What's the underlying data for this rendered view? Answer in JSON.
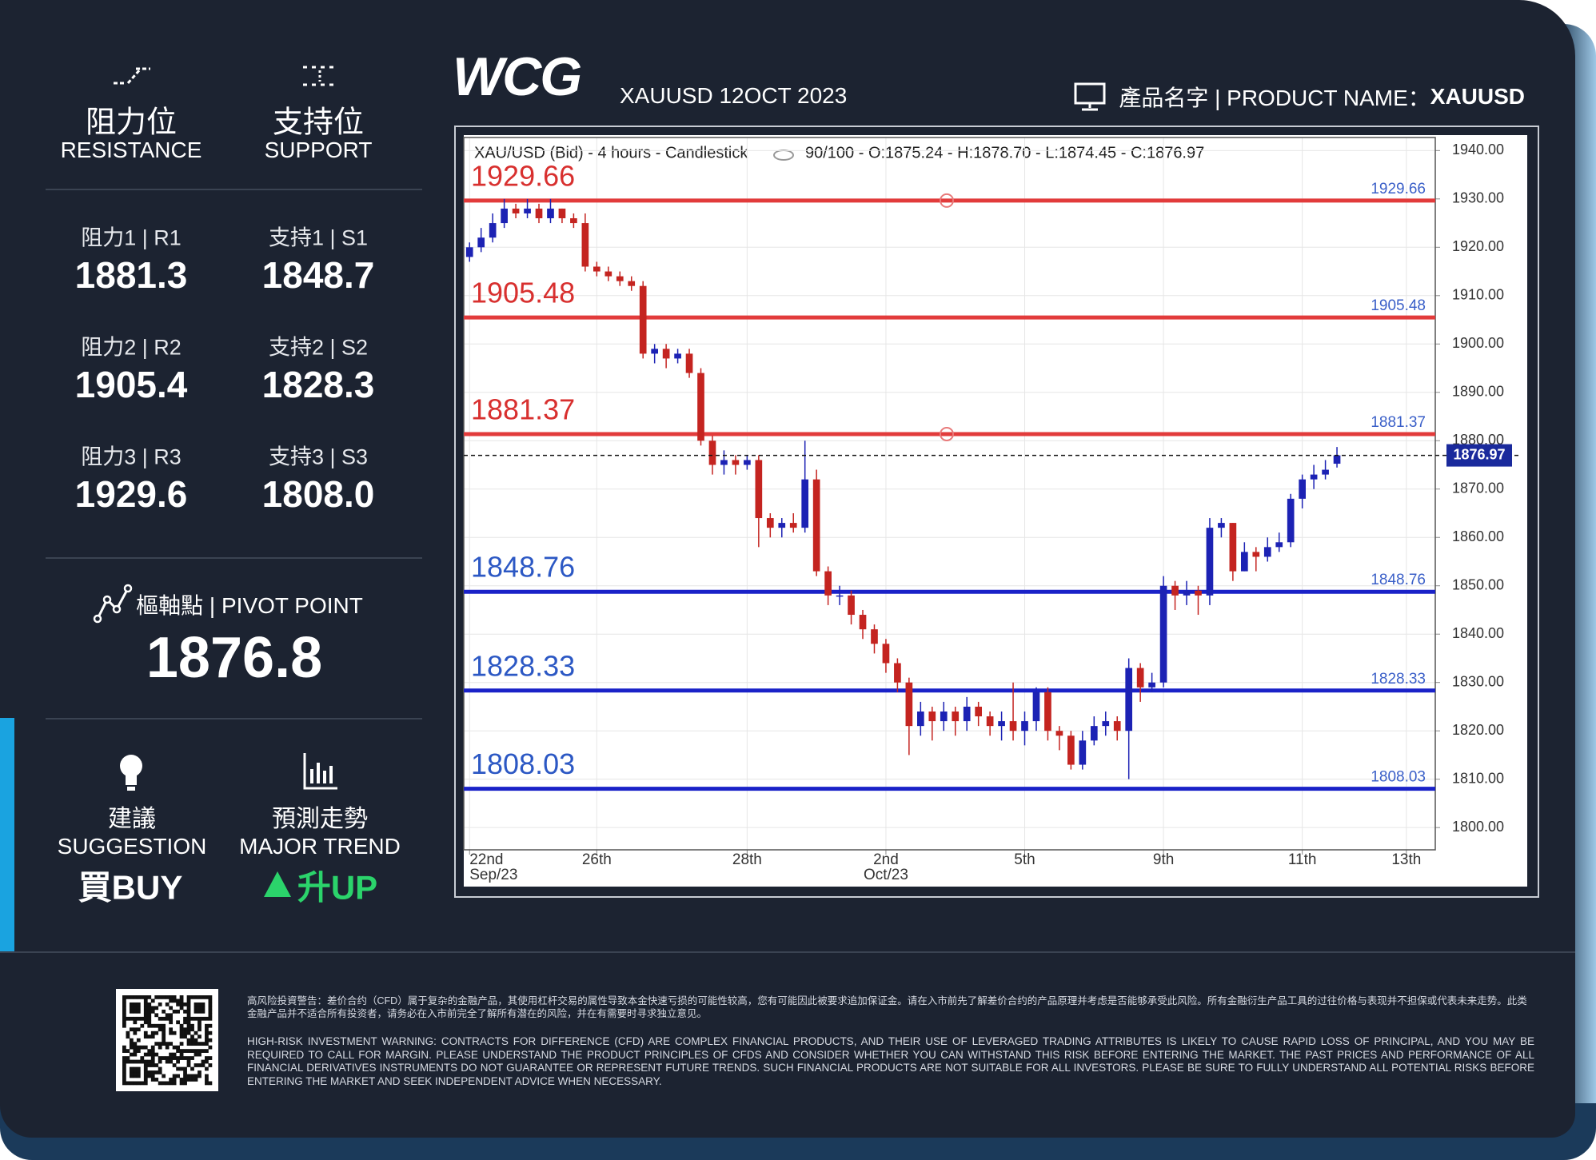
{
  "sidebar": {
    "resistance_title": "阻力位",
    "resistance_en": "RESISTANCE",
    "support_title": "支持位",
    "support_en": "SUPPORT",
    "levels": [
      {
        "r_label": "阻力1 | R1",
        "r_value": "1881.3",
        "s_label": "支持1 | S1",
        "s_value": "1848.7"
      },
      {
        "r_label": "阻力2 | R2",
        "r_value": "1905.4",
        "s_label": "支持2 | S2",
        "s_value": "1828.3"
      },
      {
        "r_label": "阻力3 | R3",
        "r_value": "1929.6",
        "s_label": "支持3 | S3",
        "s_value": "1808.0"
      }
    ],
    "pivot_label": "樞軸點 | PIVOT POINT",
    "pivot_value": "1876.8",
    "suggestion_title": "建議",
    "suggestion_en": "SUGGESTION",
    "suggestion_value": "買BUY",
    "trend_title": "預測走勢",
    "trend_en": "MAJOR TREND",
    "trend_value": "升UP"
  },
  "header": {
    "logo": "WCG",
    "subtitle": "XAUUSD 12OCT 2023",
    "product_label": "產品名字 | PRODUCT NAME：",
    "product_value": "XAUUSD"
  },
  "chart_data": {
    "type": "candlestick",
    "title": "XAU/USD (Bid) - 4 hours - Candlestick",
    "info": "90/100 - O:1875.24 - H:1878.70 - L:1874.45 - C:1876.97",
    "up_color": "#1c22b4",
    "down_color": "#c42420",
    "grid": true,
    "categories": [
      "22nd",
      null,
      null,
      null,
      null,
      null,
      null,
      null,
      null,
      null,
      null,
      "26th",
      null,
      null,
      null,
      null,
      null,
      null,
      null,
      null,
      null,
      null,
      null,
      null,
      "28th",
      null,
      null,
      null,
      null,
      null,
      null,
      null,
      null,
      null,
      null,
      null,
      "2nd",
      null,
      null,
      null,
      null,
      null,
      null,
      null,
      null,
      null,
      null,
      null,
      "5th",
      null,
      null,
      null,
      null,
      null,
      null,
      null,
      null,
      null,
      null,
      null,
      "9th",
      null,
      null,
      null,
      null,
      null,
      null,
      null,
      null,
      null,
      null,
      null,
      "11th",
      null,
      null,
      null,
      null,
      null,
      null,
      null,
      null,
      "13th",
      null,
      null
    ],
    "x_sublabels": [
      "Sep/23",
      null,
      null,
      null,
      null,
      null,
      null,
      null,
      null,
      null,
      null,
      null,
      null,
      null,
      null,
      null,
      null,
      null,
      null,
      null,
      null,
      null,
      null,
      null,
      null,
      null,
      null,
      null,
      null,
      null,
      null,
      null,
      null,
      null,
      null,
      null,
      "Oct/23",
      null,
      null,
      null,
      null,
      null,
      null,
      null,
      null,
      null,
      null,
      null,
      null,
      null,
      null,
      null,
      null,
      null,
      null,
      null,
      null,
      null,
      null,
      null,
      null,
      null,
      null,
      null,
      null,
      null,
      null,
      null,
      null,
      null,
      null,
      null,
      null,
      null,
      null,
      null,
      null,
      null,
      null,
      null,
      null,
      null,
      null,
      null
    ],
    "open": [
      1918,
      1920,
      1922,
      1925,
      1928,
      1927,
      1928,
      1926,
      1928,
      1926,
      1925,
      1916,
      1915,
      1914,
      1913,
      1912,
      1898,
      1899,
      1897,
      1898,
      1894,
      1880,
      1875,
      1876,
      1875,
      1876,
      1864,
      1862,
      1863,
      1862,
      1872,
      1853,
      1848,
      1848,
      1844,
      1841,
      1838,
      1834,
      1830,
      1821,
      1824,
      1822,
      1824,
      1822,
      1825,
      1823,
      1821,
      1822,
      1820,
      1822,
      1828,
      1820,
      1819,
      1813,
      1818,
      1821,
      1822,
      1820,
      1833,
      1829,
      1830,
      1850,
      1848,
      1849,
      1848,
      1862,
      1863,
      1853,
      1857,
      1856,
      1858,
      1859,
      1868,
      1872,
      1873,
      1875.24,
      null,
      null,
      null,
      null,
      null,
      null,
      null,
      null
    ],
    "high": [
      1921,
      1924,
      1927,
      1930,
      1929,
      1930,
      1929,
      1930,
      1928,
      1927,
      1927,
      1917,
      1916,
      1915,
      1914,
      1913,
      1900,
      1900,
      1899,
      1899,
      1895,
      1881,
      1878,
      1877,
      1877,
      1877,
      1865,
      1864,
      1865,
      1880,
      1874,
      1854,
      1850,
      1849,
      1845,
      1842,
      1839,
      1835,
      1831,
      1826,
      1825,
      1826,
      1825,
      1827,
      1826,
      1824,
      1824,
      1830,
      1824,
      1829,
      1829,
      1821,
      1820,
      1820,
      1823,
      1824,
      1823,
      1835,
      1834,
      1832,
      1852,
      1851,
      1851,
      1850,
      1864,
      1864,
      1863,
      1859,
      1858,
      1860,
      1861,
      1869,
      1873,
      1875,
      1876,
      1878.7,
      null,
      null,
      null,
      null,
      null,
      null,
      null,
      null
    ],
    "low": [
      1917,
      1919,
      1921,
      1924,
      1926,
      1926,
      1925,
      1925,
      1925,
      1924,
      1915,
      1914,
      1913,
      1912,
      1911,
      1897,
      1896,
      1895,
      1896,
      1893,
      1879,
      1873,
      1873,
      1873,
      1874,
      1858,
      1860,
      1860,
      1861,
      1861,
      1852,
      1846,
      1846,
      1842,
      1839,
      1836,
      1832,
      1828,
      1815,
      1819,
      1818,
      1820,
      1819,
      1820,
      1821,
      1819,
      1818,
      1818,
      1817,
      1820,
      1818,
      1816,
      1812,
      1812,
      1817,
      1819,
      1818,
      1810,
      1826,
      1828,
      1829,
      1845,
      1846,
      1844,
      1846,
      1860,
      1851,
      1853,
      1853,
      1855,
      1857,
      1858,
      1866,
      1870,
      1872,
      1874.45,
      null,
      null,
      null,
      null,
      null,
      null,
      null,
      null
    ],
    "close": [
      1920,
      1922,
      1925,
      1928,
      1927,
      1928,
      1926,
      1928,
      1926,
      1925,
      1916,
      1915,
      1914,
      1913,
      1912,
      1898,
      1899,
      1897,
      1898,
      1894,
      1880,
      1875,
      1876,
      1875,
      1876,
      1864,
      1862,
      1863,
      1862,
      1872,
      1853,
      1848,
      1848,
      1844,
      1841,
      1838,
      1834,
      1830,
      1821,
      1824,
      1822,
      1824,
      1822,
      1825,
      1823,
      1821,
      1822,
      1820,
      1822,
      1828,
      1820,
      1819,
      1813,
      1818,
      1821,
      1822,
      1820,
      1833,
      1829,
      1830,
      1850,
      1848,
      1849,
      1848,
      1862,
      1863,
      1853,
      1857,
      1856,
      1858,
      1859,
      1868,
      1872,
      1873,
      1874,
      1876.97,
      null,
      null,
      null,
      null,
      null,
      null,
      null,
      null
    ],
    "levels": [
      {
        "value": 1929.66,
        "color": "#e23b3b",
        "label_color": "#d8302f"
      },
      {
        "value": 1905.48,
        "color": "#e23b3b",
        "label_color": "#d8302f"
      },
      {
        "value": 1881.37,
        "color": "#e23b3b",
        "label_color": "#d8302f"
      },
      {
        "value": 1848.76,
        "color": "#1a22c8",
        "label_color": "#2c58c4"
      },
      {
        "value": 1828.33,
        "color": "#1a22c8",
        "label_color": "#2c58c4"
      },
      {
        "value": 1808.03,
        "color": "#1a22c8",
        "label_color": "#2c58c4"
      }
    ],
    "ylim": [
      1795.4,
      1942.7
    ],
    "yticks": [
      {
        "value": 1800,
        "label": "1800.00"
      },
      {
        "value": 1810,
        "label": "1810.00"
      },
      {
        "value": 1820,
        "label": "1820.00"
      },
      {
        "value": 1830,
        "label": "1830.00"
      },
      {
        "value": 1840,
        "label": "1840.00"
      },
      {
        "value": 1850,
        "label": "1850.00"
      },
      {
        "value": 1860,
        "label": "1860.00"
      },
      {
        "value": 1870,
        "label": "1870.00"
      },
      {
        "value": 1880,
        "label": "1880.00"
      },
      {
        "value": 1890,
        "label": "1890.00"
      },
      {
        "value": 1900,
        "label": "1900.00"
      },
      {
        "value": 1910,
        "label": "1910.00"
      },
      {
        "value": 1920,
        "label": "1920.00"
      },
      {
        "value": 1930,
        "label": "1930.00"
      },
      {
        "value": 1940,
        "label": "1940.00"
      }
    ]
  },
  "footer": {
    "disclaimer_cn": "高风险投資警告：差价合约（CFD）属于复杂的金融产品，其使用杠杆交易的属性导致本金快速亏损的可能性较高，您有可能因此被要求追加保证金。请在入市前先了解差价合约的产品原理并考虑是否能够承受此风险。所有金融衍生产品工具的过往价格与表现并不担保或代表未来走势。此类金融产品并不适合所有投资者，请务必在入市前完全了解所有潜在的风险，并在有需要时寻求独立意见。",
    "disclaimer_en": "HIGH-RISK INVESTMENT WARNING: CONTRACTS FOR DIFFERENCE (CFD) ARE COMPLEX FINANCIAL PRODUCTS, AND THEIR USE OF LEVERAGED TRADING ATTRIBUTES IS LIKELY TO CAUSE RAPID LOSS OF PRINCIPAL, AND YOU MAY BE REQUIRED TO CALL FOR MARGIN. PLEASE UNDERSTAND THE PRODUCT PRINCIPLES OF CFDS AND CONSIDER WHETHER YOU CAN WITHSTAND THIS RISK BEFORE ENTERING THE MARKET. THE PAST PRICES AND PERFORMANCE OF ALL FINANCIAL DERIVATIVES INSTRUMENTS DO NOT GUARANTEE OR REPRESENT FUTURE TRENDS. SUCH FINANCIAL PRODUCTS ARE NOT SUITABLE FOR ALL INVESTORS. PLEASE BE SURE TO FULLY UNDERSTAND ALL POTENTIAL RISKS BEFORE ENTERING THE MARKET AND SEEK INDEPENDENT ADVICE WHEN NECESSARY."
  }
}
